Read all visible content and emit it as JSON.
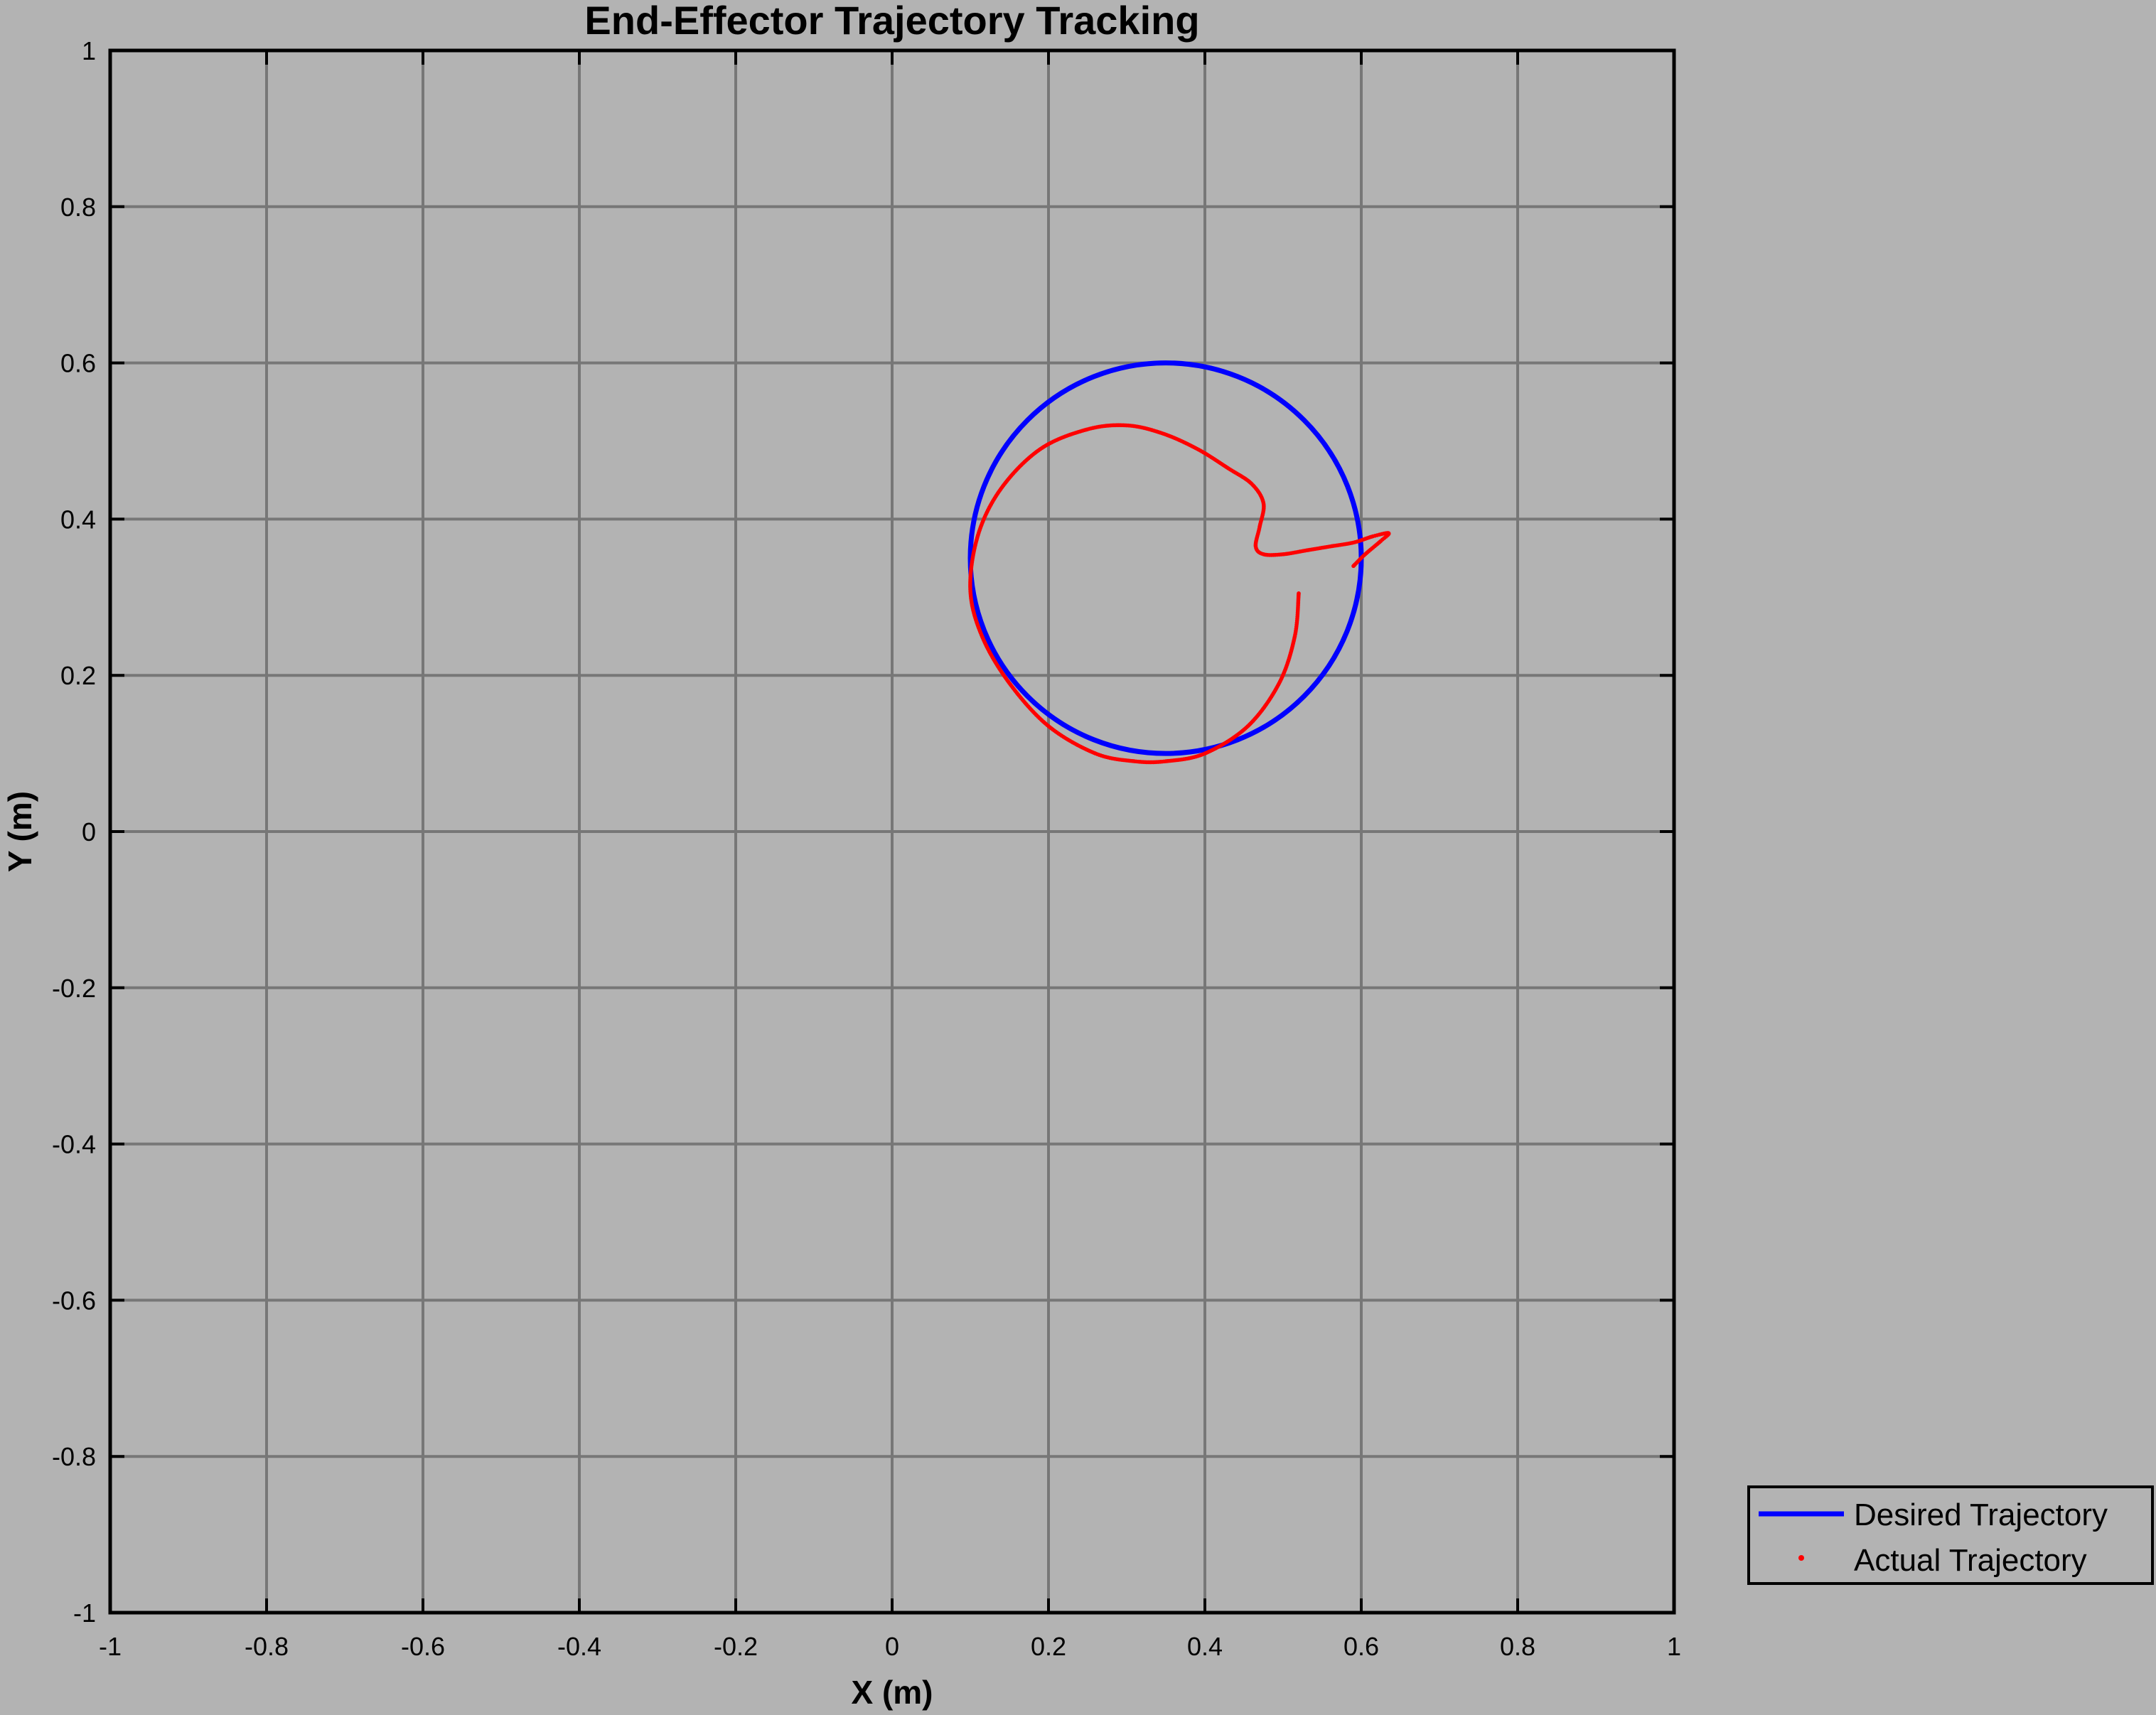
{
  "chart_data": {
    "type": "line",
    "title": "End-Effector Trajectory Tracking",
    "xlabel": "X (m)",
    "ylabel": "Y (m)",
    "xlim": [
      -1,
      1
    ],
    "ylim": [
      -1,
      1
    ],
    "xticks": [
      -1,
      -0.8,
      -0.6,
      -0.4,
      -0.2,
      0,
      0.2,
      0.4,
      0.6,
      0.8,
      1
    ],
    "yticks": [
      -1,
      -0.8,
      -0.6,
      -0.4,
      -0.2,
      0,
      0.2,
      0.4,
      0.6,
      0.8,
      1
    ],
    "xtick_labels": [
      "-1",
      "-0.8",
      "-0.6",
      "-0.4",
      "-0.2",
      "0",
      "0.2",
      "0.4",
      "0.6",
      "0.8",
      "1"
    ],
    "ytick_labels": [
      "-1",
      "-0.8",
      "-0.6",
      "-0.4",
      "-0.2",
      "0",
      "0.2",
      "0.4",
      "0.6",
      "0.8",
      "1"
    ],
    "grid": true,
    "legend_position": "bottom-right outside",
    "background_color": "#b3b3b3",
    "grid_color": "#777777",
    "series": [
      {
        "name": "Desired Trajectory",
        "style": "solid-line",
        "color": "#0000ff",
        "center": [
          0.35,
          0.35
        ],
        "radius": 0.25
      },
      {
        "name": "Actual Trajectory",
        "style": "dots",
        "color": "#ff0000",
        "x": [
          0.52,
          0.515,
          0.495,
          0.455,
          0.4,
          0.35,
          0.31,
          0.26,
          0.2,
          0.15,
          0.115,
          0.1,
          0.11,
          0.14,
          0.19,
          0.25,
          0.3,
          0.345,
          0.39,
          0.43,
          0.46,
          0.475,
          0.47,
          0.465,
          0.475,
          0.5,
          0.53,
          0.56,
          0.59,
          0.615,
          0.635,
          0.625,
          0.605,
          0.59
        ],
        "y": [
          0.305,
          0.25,
          0.19,
          0.135,
          0.1,
          0.09,
          0.09,
          0.1,
          0.135,
          0.19,
          0.25,
          0.31,
          0.38,
          0.44,
          0.49,
          0.515,
          0.52,
          0.51,
          0.49,
          0.465,
          0.445,
          0.42,
          0.39,
          0.365,
          0.355,
          0.355,
          0.36,
          0.365,
          0.37,
          0.378,
          0.382,
          0.372,
          0.355,
          0.34
        ]
      }
    ]
  }
}
